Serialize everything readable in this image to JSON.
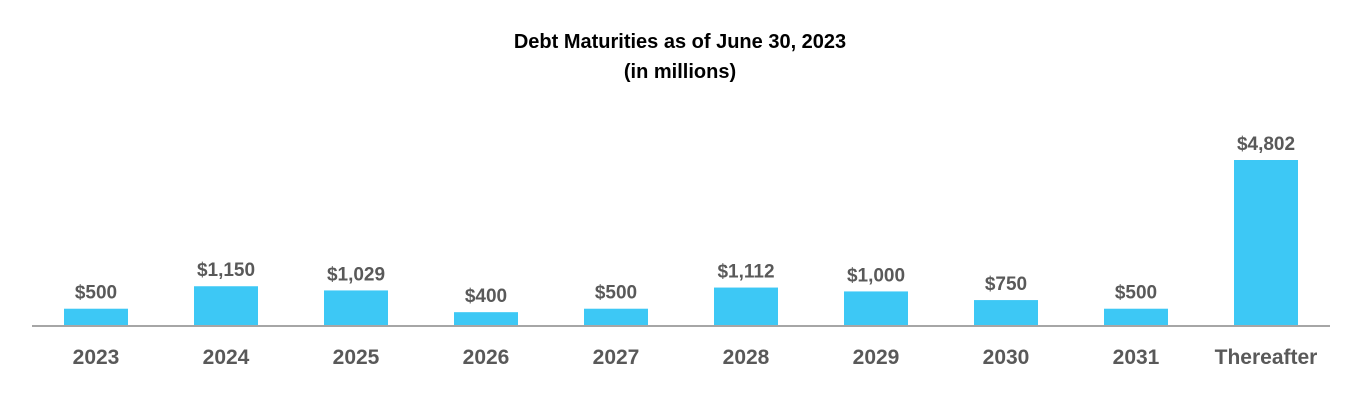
{
  "chart_data": {
    "type": "bar",
    "title": "Debt Maturities as of June 30, 2023",
    "subtitle": "(in millions)",
    "categories": [
      "2023",
      "2024",
      "2025",
      "2026",
      "2027",
      "2028",
      "2029",
      "2030",
      "2031",
      "Thereafter"
    ],
    "values": [
      500,
      1150,
      1029,
      400,
      500,
      1112,
      1000,
      750,
      500,
      4802
    ],
    "data_labels": [
      "$500",
      "$1,150",
      "$1,029",
      "$400",
      "$500",
      "$1,112",
      "$1,000",
      "$750",
      "$500",
      "$4,802"
    ],
    "xlabel": "",
    "ylabel": "",
    "ylim": [
      0,
      4802
    ],
    "grid": false,
    "legend": "none",
    "bar_color": "#3DC8F5",
    "axis_color": "#A6A6A6",
    "label_color": "#595959"
  }
}
